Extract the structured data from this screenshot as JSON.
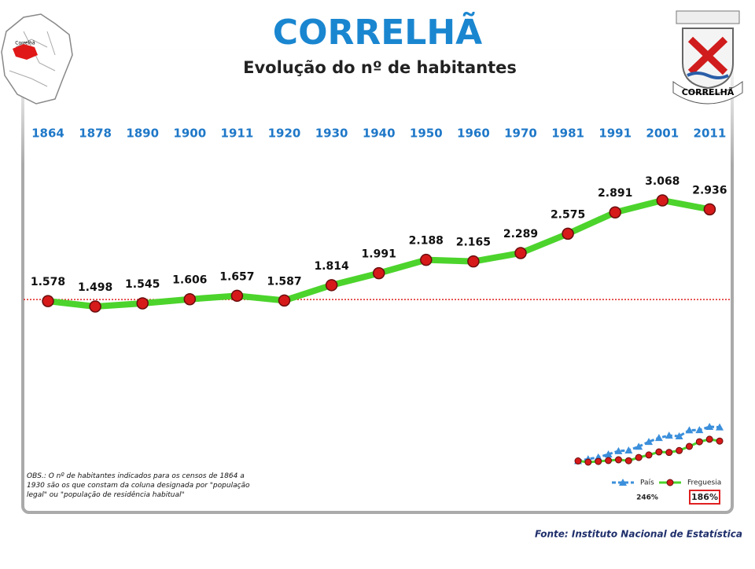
{
  "title": "CORRELHÃ",
  "subtitle": "Evolução do nº de habitantes",
  "map_label": "Correlhã",
  "crest_label": "CORRELHÃ",
  "note": "OBS.: O nº de habitantes indicados para os censos de 1864 a 1930 são os que constam da coluna designada por \"população legal\" ou \"população de residência habitual\"",
  "source": "Fonte: Instituto Nacional de Estatística",
  "chart_data": [
    {
      "type": "line",
      "categories": [
        "1864",
        "1878",
        "1890",
        "1900",
        "1911",
        "1920",
        "1930",
        "1940",
        "1950",
        "1960",
        "1970",
        "1981",
        "1991",
        "2001",
        "2011"
      ],
      "values": [
        1578,
        1498,
        1545,
        1606,
        1657,
        1587,
        1814,
        1991,
        2188,
        2165,
        2289,
        2575,
        2891,
        3068,
        2936
      ],
      "value_labels": [
        "1.578",
        "1.498",
        "1.545",
        "1.606",
        "1.657",
        "1.587",
        "1.814",
        "1.991",
        "2.188",
        "2.165",
        "2.289",
        "2.575",
        "2.891",
        "3.068",
        "2.936"
      ],
      "color": "#4cd42c",
      "marker_color": "#d61a1a"
    },
    {
      "type": "line",
      "series": [
        {
          "name": "País",
          "color": "#3b8fdb",
          "marker": "triangle",
          "values": [
            100,
            108,
            116,
            129,
            143,
            146,
            162,
            183,
            200,
            210,
            207,
            233,
            234,
            248,
            246
          ],
          "total_label": "246%"
        },
        {
          "name": "Freguesia",
          "color": "#4cd42c",
          "marker": "circle",
          "values": [
            100,
            95,
            98,
            102,
            105,
            101,
            115,
            126,
            139,
            137,
            145,
            163,
            183,
            194,
            186
          ],
          "total_label": "186%"
        }
      ]
    }
  ]
}
